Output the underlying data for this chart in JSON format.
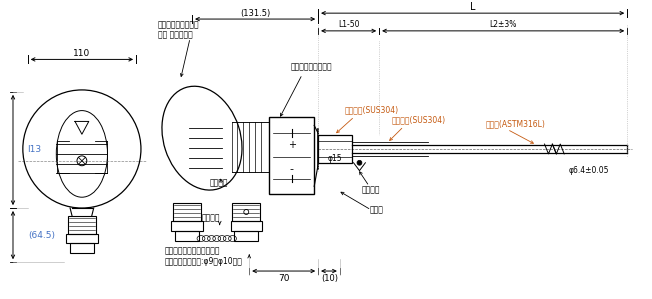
{
  "bg_color": "#ffffff",
  "line_color": "#000000",
  "label_color_blue": "#4472c4",
  "label_color_orange": "#c55a11",
  "fig_width": 6.52,
  "fig_height": 2.99,
  "dpi": 100,
  "annotations": {
    "dim_110": "110",
    "dim_131_5": "(131.5)",
    "dim_L": "L",
    "dim_L1_50": "L1-50",
    "dim_L2": "L2±3%",
    "dim_113": "l13",
    "dim_64_5": "(64.5)",
    "dim_70": "70",
    "dim_10": "(10)",
    "dim_phi15": "φ15",
    "dim_phi6_4": "φ6.4±0.05",
    "label_boeien": "防爆関連表示ラベル",
    "label_hyomen": "表面 製品ラベル",
    "label_katashiki": "型式検定合格ラベル",
    "label_socket": "ソケット(SUS304)",
    "label_support": "サポート(SUS304)",
    "label_sheath": "シース(ASTM316L)",
    "label_zenchu": "全周溶接",
    "label_tanshi": "端子箱",
    "label_cap": "キャップ",
    "label_chain": "チェーン",
    "label_cable": "耐圧防爆ケーブルグランド",
    "label_cable2": "（適応ケーブル径:φ9～φ10用）"
  }
}
